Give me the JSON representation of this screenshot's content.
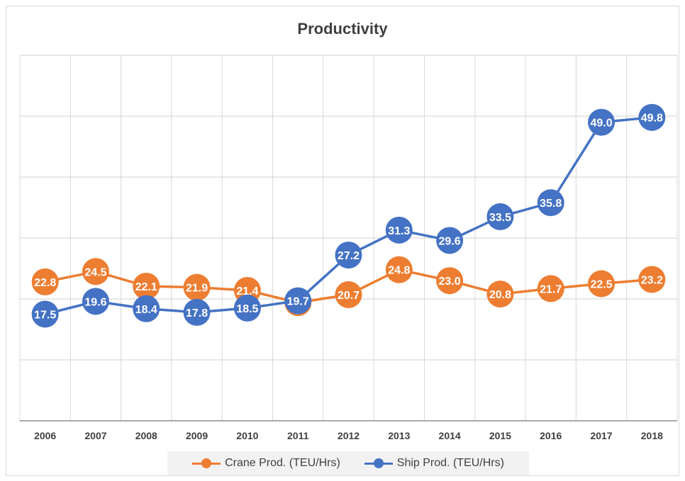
{
  "chart_data": {
    "type": "line",
    "title": "Productivity",
    "xlabel": "",
    "ylabel": "",
    "categories": [
      "2006",
      "2007",
      "2008",
      "2009",
      "2010",
      "2011",
      "2012",
      "2013",
      "2014",
      "2015",
      "2016",
      "2017",
      "2018"
    ],
    "series": [
      {
        "name": "Crane Prod. (TEU/Hrs)",
        "color": "#ED7D31",
        "values": [
          22.8,
          24.5,
          22.1,
          21.9,
          21.4,
          19.4,
          20.7,
          24.8,
          23.0,
          20.8,
          21.7,
          22.5,
          23.2
        ],
        "labels": [
          "22.8",
          "24.5",
          "22.1",
          "21.9",
          "21.4",
          "19.4",
          "20.7",
          "24.8",
          "23.0",
          "20.8",
          "21.7",
          "22.5",
          "23.2"
        ]
      },
      {
        "name": "Ship Prod. (TEU/Hrs)",
        "color": "#4472C4",
        "values": [
          17.5,
          19.6,
          18.4,
          17.8,
          18.5,
          19.7,
          27.2,
          31.3,
          29.6,
          33.5,
          35.8,
          49.0,
          49.8
        ],
        "labels": [
          "17.5",
          "19.6",
          "18.4",
          "17.8",
          "18.5",
          "19.7",
          "27.2",
          "31.3",
          "29.6",
          "33.5",
          "35.8",
          "49.0",
          "49.8"
        ]
      }
    ],
    "ylim": [
      0,
      60
    ],
    "y_axis_labels_shown": false,
    "grid": true,
    "legend_position": "bottom"
  }
}
